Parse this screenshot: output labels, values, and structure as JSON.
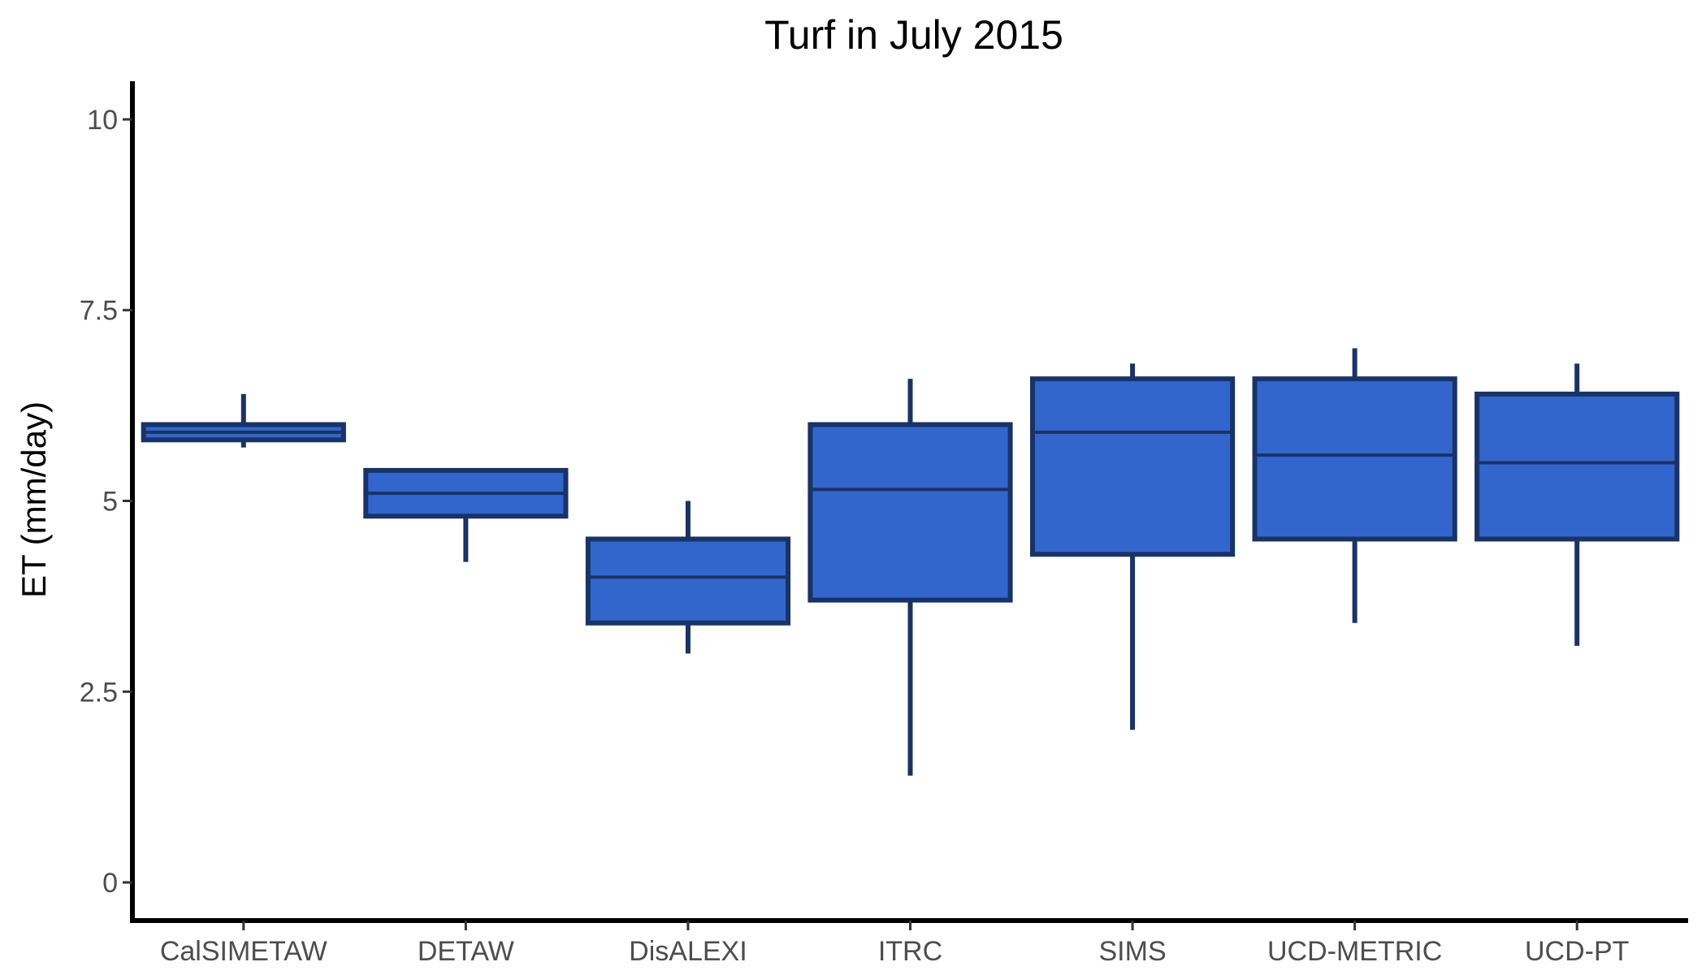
{
  "chart_data": {
    "type": "boxplot",
    "title": "Turf in July 2015",
    "xlabel": "",
    "ylabel": "ET (mm/day)",
    "ylim": [
      -0.5,
      10.5
    ],
    "yticks": [
      0,
      2.5,
      5,
      7.5,
      10
    ],
    "ytick_labels": [
      "0",
      "2.5",
      "5",
      "7.5",
      "10"
    ],
    "grid": false,
    "legend": "none",
    "box_fill": "#3366cc",
    "box_stroke": "#1a3366",
    "categories": [
      "CalSIMETAW",
      "DETAW",
      "DisALEXI",
      "ITRC",
      "SIMS",
      "UCD-METRIC",
      "UCD-PT"
    ],
    "boxes": [
      {
        "category": "CalSIMETAW",
        "min": 5.7,
        "q1": 5.8,
        "median": 5.9,
        "q3": 6.0,
        "max": 6.4
      },
      {
        "category": "DETAW",
        "min": 4.2,
        "q1": 4.8,
        "median": 5.1,
        "q3": 5.4,
        "max": 5.4
      },
      {
        "category": "DisALEXI",
        "min": 3.0,
        "q1": 3.4,
        "median": 4.0,
        "q3": 4.5,
        "max": 5.0
      },
      {
        "category": "ITRC",
        "min": 1.4,
        "q1": 3.7,
        "median": 5.15,
        "q3": 6.0,
        "max": 6.6
      },
      {
        "category": "SIMS",
        "min": 2.0,
        "q1": 4.3,
        "median": 5.9,
        "q3": 6.6,
        "max": 6.8
      },
      {
        "category": "UCD-METRIC",
        "min": 3.4,
        "q1": 4.5,
        "median": 5.6,
        "q3": 6.6,
        "max": 7.0
      },
      {
        "category": "UCD-PT",
        "min": 3.1,
        "q1": 4.5,
        "median": 5.5,
        "q3": 6.4,
        "max": 6.8
      }
    ]
  }
}
